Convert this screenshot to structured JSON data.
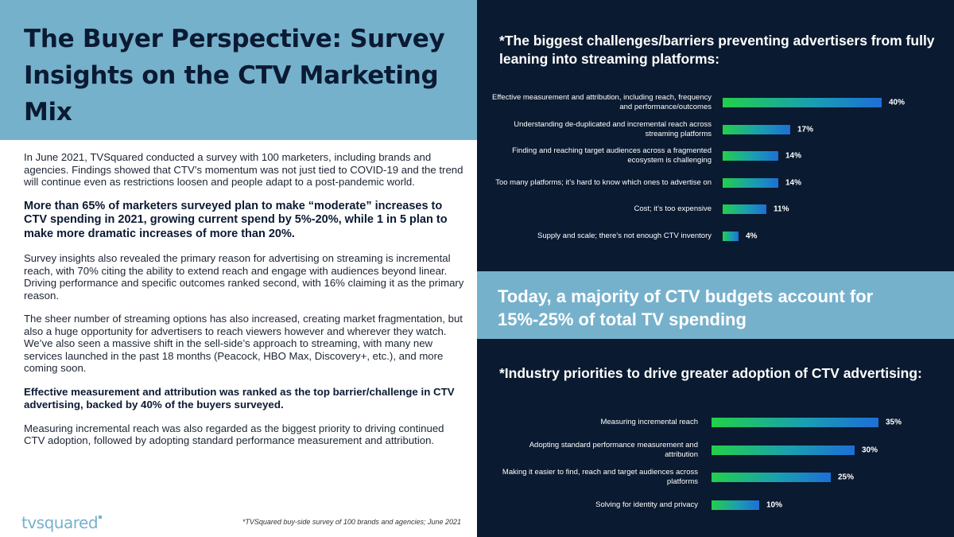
{
  "header": {
    "title": "The Buyer Perspective: Survey Insights on the CTV Marketing Mix"
  },
  "body": {
    "p1": "In June 2021, TVSquared conducted a survey with 100 marketers, including brands and agencies. Findings showed that CTV’s momentum was not just tied to COVID-19 and the trend will continue even as restrictions loosen and people adapt to a post-pandemic world.",
    "p2": "More than 65% of marketers surveyed plan to make “moderate” increases to CTV spending in 2021, growing current spend by 5%-20%, while 1 in 5 plan to make more dramatic increases of more than 20%.",
    "p3": "Survey insights also revealed the primary reason for advertising on streaming is incremental reach, with 70% citing the ability to extend reach and engage with audiences beyond linear. Driving performance and specific outcomes ranked second, with 16% claiming it as the primary reason.",
    "p4": "The sheer number of streaming options has also increased, creating market fragmentation, but also a huge opportunity for advertisers to reach viewers however and wherever they watch. We’ve also seen a massive shift in the sell-side’s approach to streaming, with many new services launched in the past 18 months (Peacock, HBO Max, Discovery+, etc.), and more coming soon.",
    "p5": "Effective measurement and attribution was ranked as the top barrier/challenge in CTV advertising, backed by 40% of the buyers surveyed.",
    "p6": "Measuring incremental reach was also regarded as the biggest priority to driving continued CTV adoption, followed by adopting standard performance measurement and attribution."
  },
  "footer": {
    "logo": "tvsquared",
    "footnote": "*TVSquared buy-side survey of 100 brands and agencies; June 2021"
  },
  "callout": "Today, a majority of CTV budgets account for 15%-25% of total TV spending",
  "colors": {
    "navy": "#0a1a30",
    "light_blue": "#76b1cc",
    "bar_start": "#22d04a",
    "bar_end": "#1d6fd6"
  },
  "chart_data": [
    {
      "type": "bar",
      "orientation": "horizontal",
      "title": "*The biggest challenges/barriers preventing advertisers from fully leaning into streaming platforms:",
      "categories": [
        "Effective measurement and attribution, including reach, frequency and performance/outcomes",
        "Understanding de-duplicated and incremental reach across streaming platforms",
        "Finding and reaching target audiences across a fragmented ecosystem is challenging",
        "Too many platforms; it’s hard to know which ones to advertise on",
        "Cost; it’s too expensive",
        "Supply and scale; there’s not enough CTV inventory"
      ],
      "values": [
        40,
        17,
        14,
        14,
        11,
        4
      ],
      "value_labels": [
        "40%",
        "17%",
        "14%",
        "14%",
        "11%",
        "4%"
      ],
      "unit": "%"
    },
    {
      "type": "bar",
      "orientation": "horizontal",
      "title": "*Industry priorities to drive greater adoption of CTV advertising:",
      "categories": [
        "Measuring incremental reach",
        "Adopting standard performance measurement and attribution",
        "Making it easier to find, reach and target audiences across platforms",
        "Solving for identity and privacy"
      ],
      "values": [
        35,
        30,
        25,
        10
      ],
      "value_labels": [
        "35%",
        "30%",
        "25%",
        "10%"
      ],
      "unit": "%"
    }
  ]
}
